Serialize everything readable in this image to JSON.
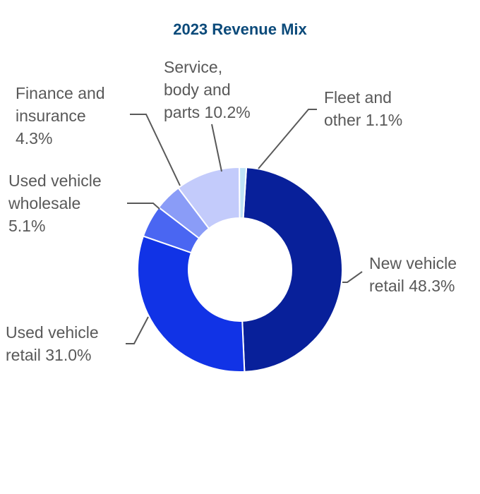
{
  "chart_data": {
    "type": "pie",
    "style": "donut",
    "title": "2023 Revenue Mix",
    "slices": [
      {
        "label_lines": [
          "New vehicle",
          "retail 48.3%"
        ],
        "category": "New vehicle retail",
        "value": 48.3,
        "color": "#08209a"
      },
      {
        "label_lines": [
          "Used vehicle",
          "retail 31.0%"
        ],
        "category": "Used vehicle retail",
        "value": 31.0,
        "color": "#1133e6"
      },
      {
        "label_lines": [
          "Used vehicle",
          "wholesale",
          "5.1%"
        ],
        "category": "Used vehicle wholesale",
        "value": 5.1,
        "color": "#4a66f2"
      },
      {
        "label_lines": [
          "Finance and",
          "insurance",
          "4.3%"
        ],
        "category": "Finance and insurance",
        "value": 4.3,
        "color": "#8a9cf7"
      },
      {
        "label_lines": [
          "Service,",
          "body and",
          "parts 10.2%"
        ],
        "category": "Service, body and parts",
        "value": 10.2,
        "color": "#c3cbfb"
      },
      {
        "label_lines": [
          "Fleet and",
          "other 1.1%"
        ],
        "category": "Fleet and other",
        "value": 1.1,
        "color": "#bfe3f6"
      }
    ]
  },
  "colors": {
    "title": "#0b4a7a",
    "label_text": "#595959",
    "leader_line": "#595959",
    "background": "#ffffff"
  }
}
